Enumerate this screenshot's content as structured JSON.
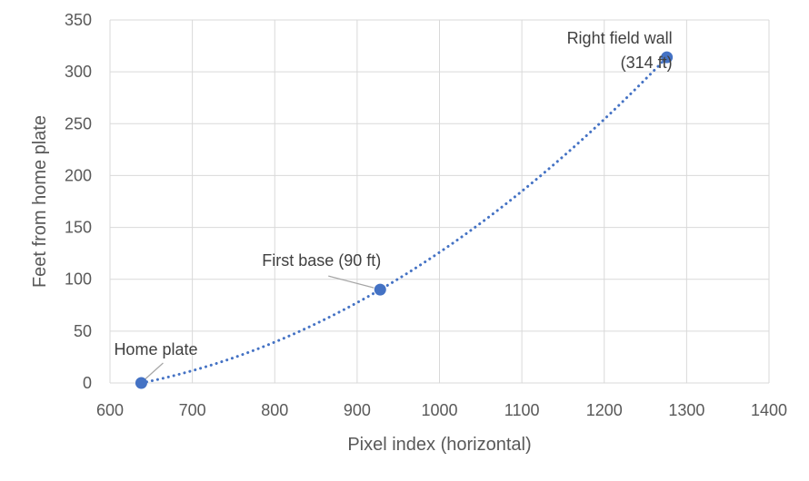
{
  "chart_data": {
    "type": "scatter",
    "title": "",
    "xlabel": "Pixel index (horizontal)",
    "ylabel": "Feet from home plate",
    "xlim": [
      600,
      1400
    ],
    "ylim": [
      0,
      350
    ],
    "xticks": [
      600,
      700,
      800,
      900,
      1000,
      1100,
      1200,
      1300,
      1400
    ],
    "yticks": [
      0,
      50,
      100,
      150,
      200,
      250,
      300,
      350
    ],
    "grid": true,
    "legend": "none",
    "series": [
      {
        "color": "#4472c4",
        "points": [
          {
            "x": 638,
            "y": 0,
            "label": "Home plate"
          },
          {
            "x": 928,
            "y": 90,
            "label": "First base (90 ft)"
          },
          {
            "x": 1276,
            "y": 314,
            "label_lines": [
              "Right field wall",
              "(314 ft)"
            ]
          }
        ],
        "trendline": {
          "type": "polynomial",
          "order": 2,
          "style": "dotted",
          "color": "#4472c4"
        }
      }
    ]
  }
}
